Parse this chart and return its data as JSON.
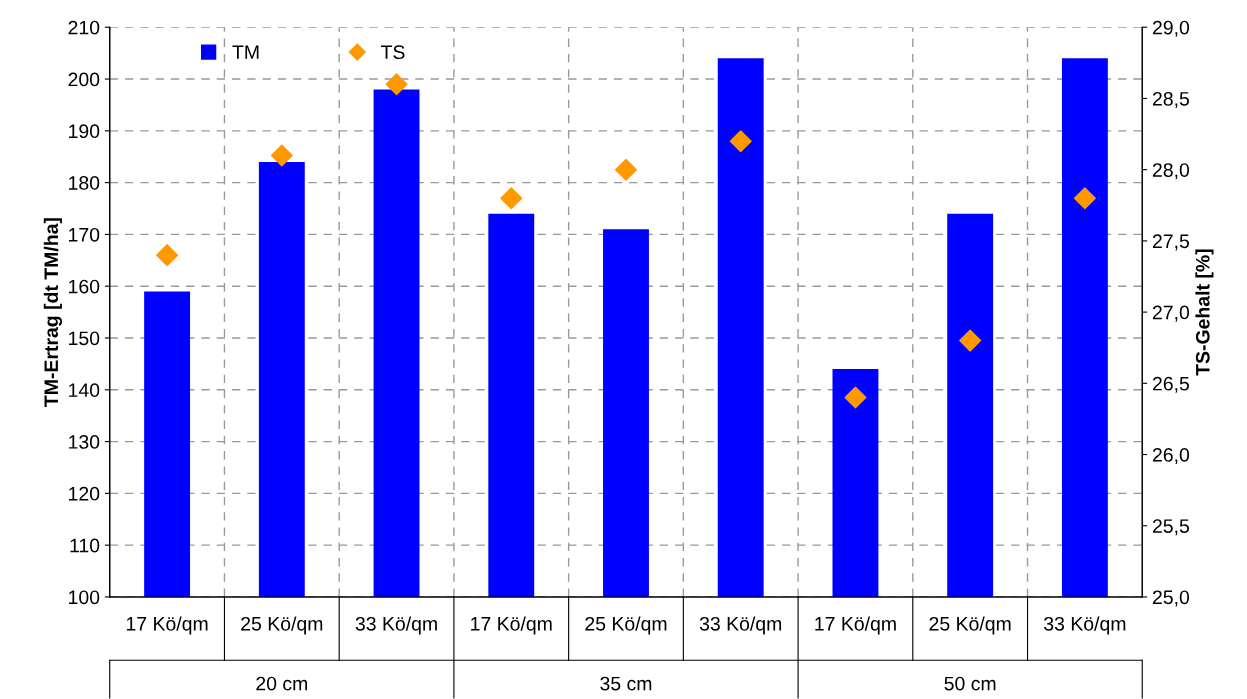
{
  "chart_data": {
    "type": "bar",
    "categories": [
      "17 Kö/qm",
      "25 Kö/qm",
      "33 Kö/qm",
      "17 Kö/qm",
      "25 Kö/qm",
      "33 Kö/qm",
      "17 Kö/qm",
      "25 Kö/qm",
      "33 Kö/qm"
    ],
    "annotations": [
      "20 cm",
      "35 cm",
      "50 cm"
    ],
    "ylabel": "TM-Ertrag [dt TM/ha]",
    "y2label": "TS-Gehalt [%]",
    "series": [
      {
        "name": "TM",
        "color": "#0000ff",
        "values": [
          159,
          184,
          198,
          174,
          171,
          204,
          144,
          174,
          204
        ]
      },
      {
        "name": "TS",
        "type": "scatter",
        "axis": "y2",
        "color": "#ff9900",
        "marker": "diamond",
        "values": [
          27.4,
          28.1,
          28.6,
          27.8,
          28.0,
          28.2,
          26.4,
          26.8,
          27.8
        ]
      }
    ],
    "ylim": [
      100,
      210
    ],
    "yticks": [
      100,
      110,
      120,
      130,
      140,
      150,
      160,
      170,
      180,
      190,
      200,
      210
    ],
    "y2lim": [
      25,
      29
    ],
    "y2ticks": [
      {
        "value": 25,
        "label": "25,0"
      },
      {
        "value": 25.5,
        "label": "25,5"
      },
      {
        "value": 26,
        "label": "26,0"
      },
      {
        "value": 26.5,
        "label": "26,5"
      },
      {
        "value": 27,
        "label": "27,0"
      },
      {
        "value": 27.5,
        "label": "27,5"
      },
      {
        "value": 28,
        "label": "28,0"
      },
      {
        "value": 28.5,
        "label": "28,5"
      },
      {
        "value": 29,
        "label": "29,0"
      }
    ],
    "grid": true,
    "legend": "top left"
  }
}
